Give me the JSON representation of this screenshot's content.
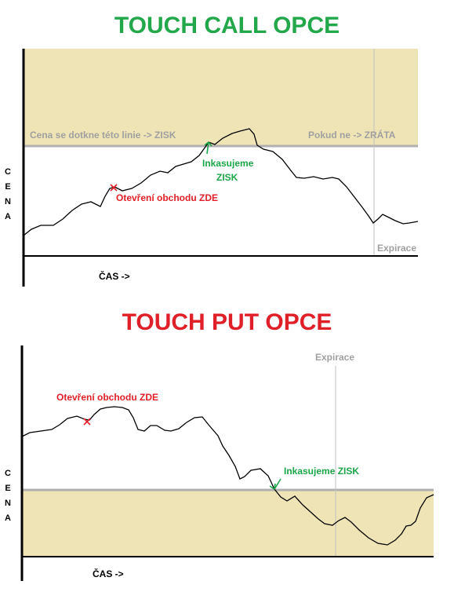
{
  "diagrams": [
    {
      "title": "TOUCH CALL  OPCE",
      "y_axis_label": [
        "C",
        "E",
        "N",
        "A"
      ],
      "x_axis_label": "ČAS ->",
      "barrier_left_text": "Cena se dotkne této linie -> ZISK",
      "barrier_right_text": "Pokud ne -> ZRÁTA",
      "entry_text": "Otevření obchodu ZDE",
      "touch_text_line1": "Inkasujeme",
      "touch_text_line2": "ZISK",
      "expiry_text": "Expirace",
      "colors": {
        "title": "#22a84a",
        "zone": "#efe4b6",
        "barrier": "#b0b0b0",
        "price": "#000000",
        "entry_marker": "#e02028",
        "touch_marker": "#1da54a"
      }
    },
    {
      "title": "TOUCH PUT OPCE",
      "y_axis_label": [
        "C",
        "E",
        "N",
        "A"
      ],
      "x_axis_label": "ČAS ->",
      "entry_text": "Otevření obchodu ZDE",
      "touch_text": "Inkasujeme ZISK",
      "expiry_text": "Expirace",
      "colors": {
        "title": "#e02028",
        "zone": "#efe4b6",
        "barrier": "#b0b0b0",
        "price": "#000000",
        "entry_marker": "#e02028",
        "touch_marker": "#1da54a"
      }
    }
  ]
}
